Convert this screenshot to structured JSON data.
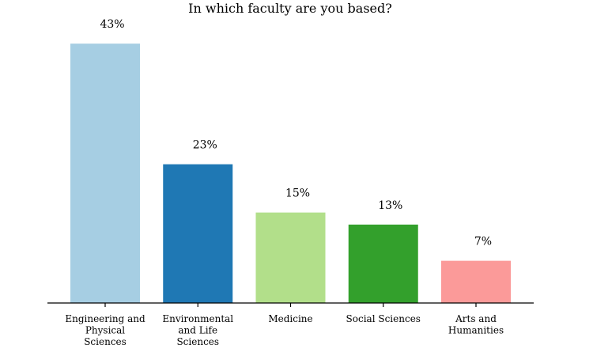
{
  "chart_data": {
    "type": "bar",
    "title": "In which faculty are you based?",
    "xlabel": "",
    "ylabel": "",
    "ylim": [
      0,
      48
    ],
    "grid": false,
    "y_axis_visible": false,
    "categories": [
      [
        "Engineering and",
        "Physical",
        "Sciences"
      ],
      [
        "Environmental",
        "and Life",
        "Sciences"
      ],
      [
        "Medicine"
      ],
      [
        "Social Sciences"
      ],
      [
        "Arts and",
        "Humanities"
      ]
    ],
    "values": [
      43,
      23,
      15,
      13,
      7
    ],
    "value_labels": [
      "43%",
      "23%",
      "15%",
      "13%",
      "7%"
    ],
    "colors": [
      "#a6cee3",
      "#1f78b4",
      "#b2df8a",
      "#33a02c",
      "#fb9a99"
    ]
  }
}
